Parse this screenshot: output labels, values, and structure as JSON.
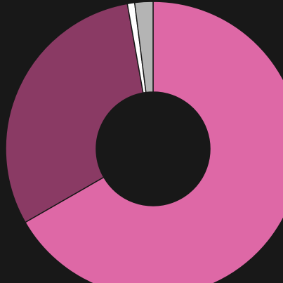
{
  "chart_data": {
    "type": "pie",
    "style": "donut",
    "title": "",
    "series": [
      {
        "value": 66.7,
        "color": "#de68a6"
      },
      {
        "value": 30.5,
        "color": "#8a3a64"
      },
      {
        "value": 0.8,
        "color": "#ffffff"
      },
      {
        "value": 2.0,
        "color": "#b4b4b4"
      }
    ],
    "start": "top",
    "direction": "clockwise",
    "legend": "none",
    "background": "#181818",
    "colors": {
      "separator": "#181818"
    }
  }
}
